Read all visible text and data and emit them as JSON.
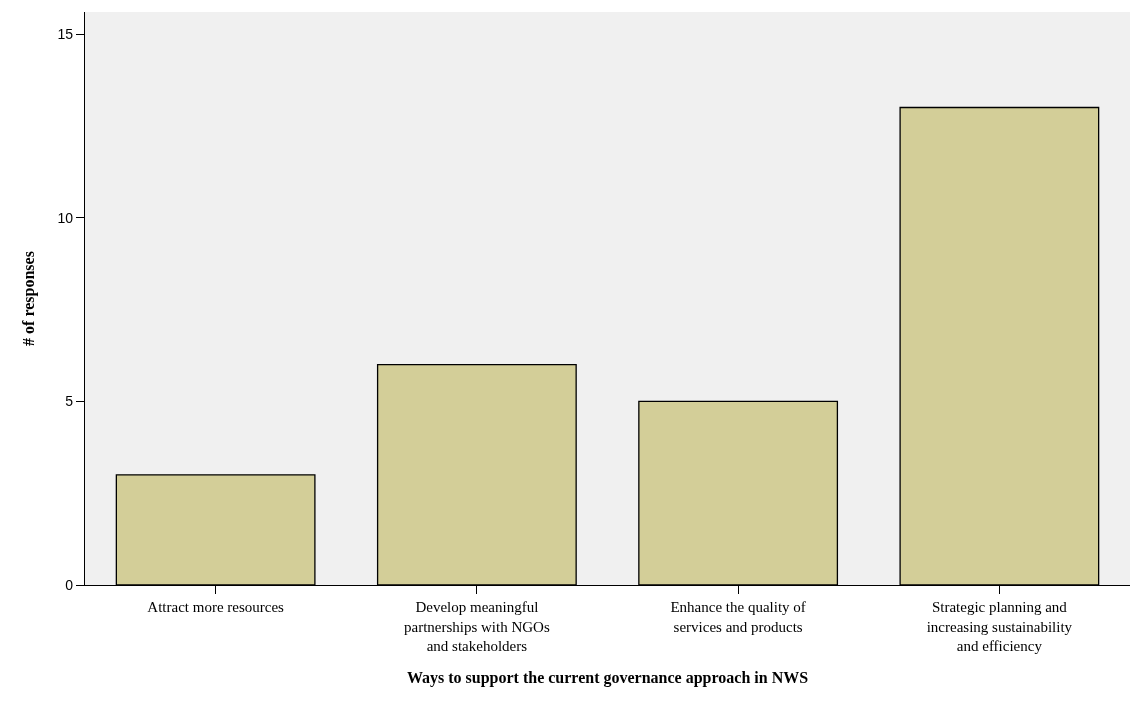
{
  "chart_data": {
    "type": "bar",
    "xlabel": "Ways to support the current governance approach in NWS",
    "ylabel": "# of responses",
    "categories": [
      "Attract more resources",
      "Develop meaningful partnerships with NGOs and stakeholders",
      "Enhance the quality of services and products",
      "Strategic planning and increasing sustainability and efficiency"
    ],
    "values": [
      3,
      6,
      5,
      13
    ],
    "color": "#d3ce98",
    "ylim": [
      0,
      15.6
    ],
    "yticks": [
      0,
      5,
      10,
      15
    ]
  }
}
